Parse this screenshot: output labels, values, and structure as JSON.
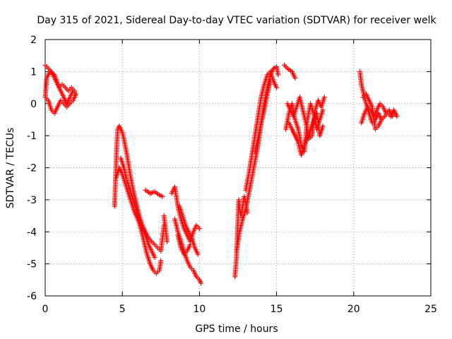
{
  "chart_data": {
    "type": "scatter",
    "title": "Day 315 of 2021, Sidereal Day-to-day VTEC variation (SDTVAR) for receiver welk",
    "xlabel": "GPS time / hours",
    "ylabel": "SDTVAR / TECUs",
    "xlim": [
      0,
      25
    ],
    "ylim": [
      -6,
      2
    ],
    "xticks": [
      0,
      5,
      10,
      15,
      20,
      25
    ],
    "yticks": [
      -6,
      -5,
      -4,
      -3,
      -2,
      -1,
      0,
      1,
      2
    ],
    "grid": true,
    "marker": "+",
    "color": "#ff0000",
    "series": [
      {
        "name": "SDTVAR",
        "segments": [
          [
            [
              0.0,
              1.2
            ],
            [
              0.2,
              1.1
            ],
            [
              0.4,
              1.0
            ],
            [
              0.6,
              0.8
            ],
            [
              0.8,
              0.6
            ],
            [
              1.0,
              0.4
            ],
            [
              1.2,
              0.2
            ],
            [
              1.4,
              0.0
            ],
            [
              1.6,
              0.2
            ],
            [
              1.8,
              0.4
            ],
            [
              2.0,
              0.3
            ],
            [
              1.8,
              0.1
            ],
            [
              1.6,
              0.0
            ],
            [
              1.4,
              -0.1
            ],
            [
              1.2,
              0.0
            ],
            [
              1.0,
              0.1
            ],
            [
              0.8,
              -0.1
            ],
            [
              0.6,
              -0.3
            ],
            [
              0.4,
              -0.2
            ],
            [
              0.2,
              0.1
            ],
            [
              0.0,
              0.2
            ],
            [
              0.1,
              0.8
            ],
            [
              0.3,
              1.0
            ],
            [
              0.6,
              0.9
            ],
            [
              0.9,
              0.5
            ],
            [
              1.1,
              0.6
            ],
            [
              1.3,
              0.5
            ],
            [
              1.5,
              0.4
            ],
            [
              1.7,
              0.5
            ],
            [
              1.9,
              0.4
            ]
          ],
          [
            [
              4.5,
              -3.2
            ],
            [
              4.55,
              -2.5
            ],
            [
              4.6,
              -1.8
            ],
            [
              4.65,
              -1.2
            ],
            [
              4.7,
              -0.8
            ],
            [
              4.8,
              -0.7
            ],
            [
              5.0,
              -0.9
            ],
            [
              5.1,
              -1.1
            ],
            [
              5.3,
              -1.6
            ],
            [
              5.5,
              -2.2
            ],
            [
              5.7,
              -2.7
            ],
            [
              5.9,
              -3.1
            ],
            [
              6.1,
              -3.5
            ],
            [
              6.3,
              -3.8
            ],
            [
              6.5,
              -4.0
            ],
            [
              6.7,
              -4.2
            ],
            [
              6.9,
              -4.3
            ],
            [
              7.1,
              -4.4
            ],
            [
              7.3,
              -4.5
            ],
            [
              7.5,
              -4.6
            ],
            [
              7.6,
              -4.2
            ],
            [
              7.7,
              -3.8
            ]
          ],
          [
            [
              4.6,
              -2.3
            ],
            [
              4.8,
              -2.0
            ],
            [
              5.0,
              -2.2
            ],
            [
              5.2,
              -2.5
            ],
            [
              5.4,
              -2.8
            ],
            [
              5.6,
              -3.1
            ],
            [
              5.8,
              -3.4
            ],
            [
              6.0,
              -3.6
            ],
            [
              6.2,
              -3.9
            ],
            [
              6.4,
              -4.3
            ],
            [
              6.6,
              -4.7
            ],
            [
              6.8,
              -5.0
            ],
            [
              7.0,
              -5.2
            ],
            [
              7.2,
              -5.3
            ],
            [
              7.4,
              -5.2
            ],
            [
              7.5,
              -4.9
            ]
          ],
          [
            [
              4.9,
              -1.7
            ],
            [
              5.1,
              -2.0
            ],
            [
              5.3,
              -2.4
            ],
            [
              5.5,
              -2.7
            ],
            [
              5.7,
              -3.0
            ],
            [
              5.9,
              -3.3
            ],
            [
              6.1,
              -3.6
            ],
            [
              6.3,
              -3.9
            ],
            [
              6.5,
              -4.1
            ],
            [
              6.7,
              -4.4
            ],
            [
              6.9,
              -4.6
            ],
            [
              7.1,
              -4.8
            ]
          ],
          [
            [
              6.5,
              -2.7
            ],
            [
              6.8,
              -2.8
            ],
            [
              7.1,
              -2.75
            ],
            [
              7.4,
              -2.85
            ],
            [
              7.6,
              -2.9
            ]
          ],
          [
            [
              7.7,
              -3.5
            ],
            [
              7.8,
              -3.9
            ],
            [
              7.9,
              -4.3
            ]
          ],
          [
            [
              8.2,
              -2.8
            ],
            [
              8.4,
              -2.6
            ],
            [
              8.6,
              -3.2
            ],
            [
              8.8,
              -3.6
            ],
            [
              9.0,
              -3.9
            ],
            [
              9.2,
              -4.1
            ],
            [
              9.4,
              -4.3
            ],
            [
              9.6,
              -4.0
            ],
            [
              9.8,
              -3.8
            ],
            [
              10.0,
              -3.9
            ]
          ],
          [
            [
              8.4,
              -3.6
            ],
            [
              8.6,
              -4.0
            ],
            [
              8.8,
              -4.3
            ],
            [
              9.0,
              -4.6
            ],
            [
              9.2,
              -4.9
            ],
            [
              9.4,
              -5.1
            ],
            [
              9.6,
              -5.2
            ],
            [
              9.8,
              -5.4
            ],
            [
              10.0,
              -5.5
            ],
            [
              10.1,
              -5.6
            ]
          ],
          [
            [
              8.7,
              -3.2
            ],
            [
              8.9,
              -3.5
            ],
            [
              9.1,
              -3.8
            ],
            [
              9.3,
              -4.0
            ],
            [
              9.5,
              -4.2
            ],
            [
              9.7,
              -4.5
            ],
            [
              9.9,
              -4.7
            ]
          ],
          [
            [
              8.6,
              -4.1
            ],
            [
              8.8,
              -4.5
            ],
            [
              9.0,
              -4.7
            ],
            [
              9.2,
              -4.6
            ],
            [
              9.4,
              -4.4
            ]
          ],
          [
            [
              12.3,
              -5.4
            ],
            [
              12.4,
              -4.8
            ],
            [
              12.45,
              -4.2
            ],
            [
              12.5,
              -3.6
            ],
            [
              12.55,
              -3.0
            ],
            [
              12.6,
              -3.3
            ],
            [
              12.7,
              -3.5
            ],
            [
              12.8,
              -3.2
            ],
            [
              12.9,
              -2.9
            ],
            [
              13.0,
              -3.1
            ],
            [
              13.1,
              -3.4
            ]
          ],
          [
            [
              12.4,
              -4.6
            ],
            [
              12.6,
              -4.0
            ],
            [
              12.8,
              -3.6
            ],
            [
              13.0,
              -3.3
            ],
            [
              13.2,
              -2.8
            ],
            [
              13.4,
              -2.3
            ],
            [
              13.6,
              -1.8
            ],
            [
              13.8,
              -1.3
            ],
            [
              14.0,
              -0.6
            ],
            [
              14.2,
              0.0
            ],
            [
              14.4,
              0.5
            ],
            [
              14.6,
              0.9
            ],
            [
              14.8,
              1.1
            ],
            [
              15.0,
              1.15
            ],
            [
              15.1,
              0.9
            ]
          ],
          [
            [
              13.0,
              -2.7
            ],
            [
              13.2,
              -2.2
            ],
            [
              13.4,
              -1.6
            ],
            [
              13.6,
              -1.0
            ],
            [
              13.8,
              -0.4
            ],
            [
              14.0,
              0.2
            ],
            [
              14.2,
              0.6
            ],
            [
              14.4,
              0.9
            ],
            [
              14.6,
              1.0
            ],
            [
              14.8,
              0.7
            ],
            [
              15.0,
              0.5
            ]
          ],
          [
            [
              13.6,
              -1.5
            ],
            [
              13.8,
              -1.1
            ],
            [
              14.0,
              -0.6
            ],
            [
              14.2,
              -0.2
            ],
            [
              14.4,
              0.3
            ],
            [
              14.6,
              0.7
            ]
          ],
          [
            [
              15.5,
              1.2
            ],
            [
              15.7,
              1.1
            ],
            [
              16.0,
              1.0
            ],
            [
              16.2,
              0.8
            ]
          ],
          [
            [
              15.6,
              -0.8
            ],
            [
              15.8,
              -0.3
            ],
            [
              16.0,
              0.0
            ],
            [
              16.2,
              -0.5
            ],
            [
              16.4,
              -0.8
            ],
            [
              16.6,
              -1.3
            ],
            [
              16.8,
              -1.5
            ],
            [
              17.0,
              -0.5
            ],
            [
              17.2,
              0.0
            ],
            [
              17.4,
              -0.3
            ],
            [
              17.6,
              -0.8
            ],
            [
              17.8,
              -0.5
            ],
            [
              18.0,
              -0.2
            ]
          ],
          [
            [
              15.7,
              0.0
            ],
            [
              15.9,
              -0.2
            ],
            [
              16.1,
              -0.4
            ],
            [
              16.3,
              -0.1
            ],
            [
              16.5,
              0.2
            ],
            [
              16.7,
              -0.2
            ],
            [
              16.9,
              -0.6
            ],
            [
              17.1,
              -1.1
            ],
            [
              17.3,
              -1.0
            ],
            [
              17.5,
              -0.2
            ],
            [
              17.7,
              0.1
            ],
            [
              17.9,
              -0.1
            ],
            [
              18.1,
              0.2
            ]
          ],
          [
            [
              15.8,
              -0.6
            ],
            [
              16.0,
              -0.8
            ],
            [
              16.4,
              -1.2
            ],
            [
              16.6,
              -1.6
            ],
            [
              16.8,
              -1.3
            ],
            [
              17.6,
              -0.3
            ],
            [
              17.8,
              -1.0
            ],
            [
              18.0,
              -0.7
            ]
          ],
          [
            [
              20.4,
              1.0
            ],
            [
              20.5,
              0.6
            ],
            [
              20.6,
              0.4
            ],
            [
              20.8,
              0.0
            ],
            [
              21.0,
              -0.3
            ],
            [
              21.2,
              -0.6
            ],
            [
              21.4,
              -0.5
            ],
            [
              21.6,
              -0.3
            ],
            [
              21.8,
              -0.5
            ],
            [
              22.0,
              -0.4
            ],
            [
              22.2,
              -0.3
            ],
            [
              22.4,
              -0.4
            ],
            [
              22.6,
              -0.2
            ],
            [
              22.8,
              -0.4
            ]
          ],
          [
            [
              20.5,
              -0.6
            ],
            [
              20.7,
              -0.3
            ],
            [
              20.9,
              -0.1
            ],
            [
              21.1,
              -0.2
            ],
            [
              21.3,
              -0.4
            ],
            [
              21.5,
              -0.2
            ],
            [
              21.7,
              0.0
            ],
            [
              21.9,
              -0.1
            ],
            [
              22.1,
              -0.3
            ],
            [
              22.3,
              -0.2
            ],
            [
              22.5,
              -0.4
            ],
            [
              22.7,
              -0.3
            ]
          ],
          [
            [
              20.6,
              0.2
            ],
            [
              20.8,
              0.3
            ],
            [
              21.0,
              0.1
            ],
            [
              21.2,
              -0.1
            ],
            [
              21.4,
              -0.8
            ],
            [
              21.6,
              -0.7
            ],
            [
              21.8,
              -0.5
            ]
          ]
        ]
      }
    ]
  }
}
